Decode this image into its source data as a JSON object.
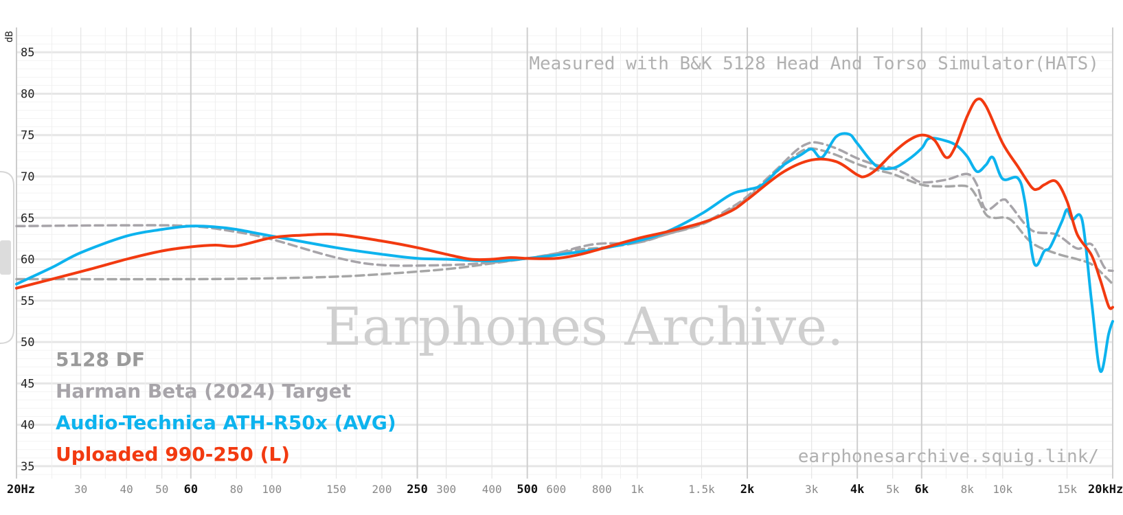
{
  "chart_data": {
    "type": "line",
    "title": "",
    "ylabel": "dB",
    "xlabel": "",
    "xscale": "log",
    "xlim": [
      20,
      20000
    ],
    "ylim": [
      33.5,
      88
    ],
    "grid": true,
    "legend_position": "bottom-left",
    "y_ticks": [
      "85",
      "80",
      "75",
      "70",
      "65",
      "60",
      "55",
      "50",
      "45",
      "40",
      "35"
    ],
    "y_tick_values": [
      85,
      80,
      75,
      70,
      65,
      60,
      55,
      50,
      45,
      40,
      35
    ],
    "x_ticks": [
      {
        "value": 20,
        "label": "20Hz",
        "major": true
      },
      {
        "value": 30,
        "label": "30",
        "major": false
      },
      {
        "value": 40,
        "label": "40",
        "major": false
      },
      {
        "value": 50,
        "label": "50",
        "major": false
      },
      {
        "value": 60,
        "label": "60",
        "major": true
      },
      {
        "value": 80,
        "label": "80",
        "major": false
      },
      {
        "value": 100,
        "label": "100",
        "major": false
      },
      {
        "value": 150,
        "label": "150",
        "major": false
      },
      {
        "value": 200,
        "label": "200",
        "major": false
      },
      {
        "value": 250,
        "label": "250",
        "major": true
      },
      {
        "value": 300,
        "label": "300",
        "major": false
      },
      {
        "value": 400,
        "label": "400",
        "major": false
      },
      {
        "value": 500,
        "label": "500",
        "major": true
      },
      {
        "value": 600,
        "label": "600",
        "major": false
      },
      {
        "value": 800,
        "label": "800",
        "major": false
      },
      {
        "value": 1000,
        "label": "1k",
        "major": false
      },
      {
        "value": 1500,
        "label": "1.5k",
        "major": false
      },
      {
        "value": 2000,
        "label": "2k",
        "major": true
      },
      {
        "value": 3000,
        "label": "3k",
        "major": false
      },
      {
        "value": 4000,
        "label": "4k",
        "major": true
      },
      {
        "value": 5000,
        "label": "5k",
        "major": false
      },
      {
        "value": 6000,
        "label": "6k",
        "major": true
      },
      {
        "value": 8000,
        "label": "8k",
        "major": false
      },
      {
        "value": 10000,
        "label": "10k",
        "major": false
      },
      {
        "value": 15000,
        "label": "15k",
        "major": false
      },
      {
        "value": 20000,
        "label": "20kHz",
        "major": true
      }
    ],
    "annotations": {
      "measurement_note": "Measured with B&K 5128 Head And Torso Simulator(HATS)",
      "watermark": "Earphones Archive.",
      "source_url": "earphonesarchive.squig.link/"
    },
    "legend": [
      {
        "label": "5128 DF",
        "color": "#9a9a9a"
      },
      {
        "label": "Harman Beta (2024) Target",
        "color": "#a7a4a9"
      },
      {
        "label": "Audio-Technica ATH-R50x (AVG)",
        "color": "#0db3ee"
      },
      {
        "label": "Uploaded 990-250 (L)",
        "color": "#f23a10"
      }
    ],
    "series": [
      {
        "label": "5128 DF",
        "color": "#a6a6a6",
        "style": "dashed",
        "points": [
          [
            20,
            57.6
          ],
          [
            60,
            57.6
          ],
          [
            100,
            57.7
          ],
          [
            150,
            57.9
          ],
          [
            200,
            58.2
          ],
          [
            300,
            58.8
          ],
          [
            400,
            59.5
          ],
          [
            500,
            60.1
          ],
          [
            600,
            60.7
          ],
          [
            700,
            61.2
          ],
          [
            800,
            61.4
          ],
          [
            1000,
            62.0
          ],
          [
            1200,
            63.0
          ],
          [
            1500,
            64.2
          ],
          [
            1800,
            66.0
          ],
          [
            2000,
            67.4
          ],
          [
            2400,
            70.5
          ],
          [
            2700,
            72.5
          ],
          [
            2900,
            73.3
          ],
          [
            3100,
            73.3
          ],
          [
            3500,
            72.6
          ],
          [
            4000,
            71.5
          ],
          [
            4500,
            70.8
          ],
          [
            5000,
            70.3
          ],
          [
            6000,
            69.0
          ],
          [
            7000,
            68.8
          ],
          [
            8000,
            68.8
          ],
          [
            8500,
            67.5
          ],
          [
            9000,
            65.4
          ],
          [
            9500,
            65.0
          ],
          [
            10500,
            64.8
          ],
          [
            12000,
            62.0
          ],
          [
            14000,
            60.7
          ],
          [
            16000,
            60.0
          ],
          [
            17500,
            59.4
          ],
          [
            19000,
            58.0
          ],
          [
            20000,
            57.0
          ]
        ]
      },
      {
        "label": "Harman Beta (2024) Target",
        "color": "#a7a4a9",
        "style": "dashed",
        "points": [
          [
            20,
            64.0
          ],
          [
            40,
            64.1
          ],
          [
            60,
            64.0
          ],
          [
            80,
            63.3
          ],
          [
            100,
            62.4
          ],
          [
            150,
            60.2
          ],
          [
            200,
            59.3
          ],
          [
            300,
            59.3
          ],
          [
            400,
            59.6
          ],
          [
            500,
            60.1
          ],
          [
            600,
            60.7
          ],
          [
            700,
            61.5
          ],
          [
            800,
            61.9
          ],
          [
            1000,
            62.0
          ],
          [
            1200,
            63.0
          ],
          [
            1500,
            64.3
          ],
          [
            1800,
            66.2
          ],
          [
            2000,
            67.6
          ],
          [
            2400,
            70.8
          ],
          [
            2700,
            73.0
          ],
          [
            2900,
            73.9
          ],
          [
            3100,
            74.1
          ],
          [
            3500,
            73.4
          ],
          [
            4000,
            72.2
          ],
          [
            4500,
            71.4
          ],
          [
            5000,
            71.0
          ],
          [
            5500,
            70.2
          ],
          [
            6000,
            69.3
          ],
          [
            7000,
            69.6
          ],
          [
            8000,
            70.3
          ],
          [
            8500,
            69.0
          ],
          [
            9000,
            66.0
          ],
          [
            10000,
            67.2
          ],
          [
            10500,
            66.5
          ],
          [
            12000,
            63.5
          ],
          [
            14000,
            63.0
          ],
          [
            16000,
            61.3
          ],
          [
            17500,
            61.8
          ],
          [
            19000,
            59.0
          ],
          [
            20000,
            58.6
          ]
        ]
      },
      {
        "label": "Audio-Technica ATH-R50x (AVG)",
        "color": "#0db3ee",
        "style": "solid",
        "points": [
          [
            20,
            57.0
          ],
          [
            25,
            59.0
          ],
          [
            30,
            60.8
          ],
          [
            40,
            62.8
          ],
          [
            50,
            63.6
          ],
          [
            60,
            64.0
          ],
          [
            70,
            63.9
          ],
          [
            80,
            63.6
          ],
          [
            100,
            62.8
          ],
          [
            150,
            61.4
          ],
          [
            200,
            60.6
          ],
          [
            250,
            60.1
          ],
          [
            300,
            60.0
          ],
          [
            400,
            59.8
          ],
          [
            500,
            60.1
          ],
          [
            600,
            60.5
          ],
          [
            800,
            61.3
          ],
          [
            1000,
            62.2
          ],
          [
            1200,
            63.3
          ],
          [
            1500,
            65.5
          ],
          [
            1800,
            67.8
          ],
          [
            2000,
            68.4
          ],
          [
            2200,
            69.0
          ],
          [
            2500,
            71.3
          ],
          [
            2800,
            72.6
          ],
          [
            3000,
            73.3
          ],
          [
            3200,
            72.3
          ],
          [
            3500,
            74.8
          ],
          [
            3800,
            75.1
          ],
          [
            4000,
            74.0
          ],
          [
            4500,
            71.3
          ],
          [
            5000,
            71.0
          ],
          [
            5500,
            72.0
          ],
          [
            6000,
            73.4
          ],
          [
            6300,
            74.6
          ],
          [
            7000,
            74.3
          ],
          [
            7500,
            73.7
          ],
          [
            8000,
            72.4
          ],
          [
            8500,
            70.6
          ],
          [
            9000,
            71.4
          ],
          [
            9400,
            72.3
          ],
          [
            10000,
            69.7
          ],
          [
            11000,
            69.8
          ],
          [
            11500,
            67.0
          ],
          [
            12200,
            59.5
          ],
          [
            13000,
            61.0
          ],
          [
            13500,
            61.5
          ],
          [
            14500,
            64.5
          ],
          [
            15000,
            66.0
          ],
          [
            15500,
            64.8
          ],
          [
            16500,
            64.7
          ],
          [
            17500,
            55.0
          ],
          [
            18500,
            46.5
          ],
          [
            19500,
            51.0
          ],
          [
            20000,
            52.5
          ]
        ]
      },
      {
        "label": "Uploaded 990-250 (L)",
        "color": "#f23a10",
        "style": "solid",
        "points": [
          [
            20,
            56.5
          ],
          [
            30,
            58.5
          ],
          [
            40,
            60.0
          ],
          [
            50,
            61.0
          ],
          [
            60,
            61.5
          ],
          [
            70,
            61.7
          ],
          [
            80,
            61.6
          ],
          [
            100,
            62.6
          ],
          [
            120,
            62.9
          ],
          [
            150,
            63.0
          ],
          [
            200,
            62.2
          ],
          [
            250,
            61.4
          ],
          [
            300,
            60.6
          ],
          [
            350,
            60.0
          ],
          [
            400,
            60.0
          ],
          [
            450,
            60.2
          ],
          [
            500,
            60.1
          ],
          [
            600,
            60.1
          ],
          [
            700,
            60.6
          ],
          [
            800,
            61.3
          ],
          [
            1000,
            62.5
          ],
          [
            1200,
            63.3
          ],
          [
            1500,
            64.4
          ],
          [
            1800,
            65.8
          ],
          [
            2000,
            67.2
          ],
          [
            2500,
            70.5
          ],
          [
            3000,
            72.0
          ],
          [
            3500,
            71.8
          ],
          [
            4000,
            70.2
          ],
          [
            4200,
            70.0
          ],
          [
            4500,
            70.8
          ],
          [
            5000,
            72.8
          ],
          [
            5500,
            74.3
          ],
          [
            6000,
            75.0
          ],
          [
            6500,
            74.4
          ],
          [
            7000,
            72.3
          ],
          [
            7400,
            73.5
          ],
          [
            8000,
            77.3
          ],
          [
            8500,
            79.3
          ],
          [
            9000,
            78.5
          ],
          [
            10000,
            74.0
          ],
          [
            11000,
            71.2
          ],
          [
            12000,
            68.7
          ],
          [
            12500,
            68.5
          ],
          [
            13000,
            69.0
          ],
          [
            14000,
            69.4
          ],
          [
            15000,
            67.0
          ],
          [
            16000,
            63.0
          ],
          [
            17500,
            60.5
          ],
          [
            18500,
            57.5
          ],
          [
            19500,
            54.3
          ],
          [
            20000,
            54.2
          ]
        ]
      }
    ]
  }
}
